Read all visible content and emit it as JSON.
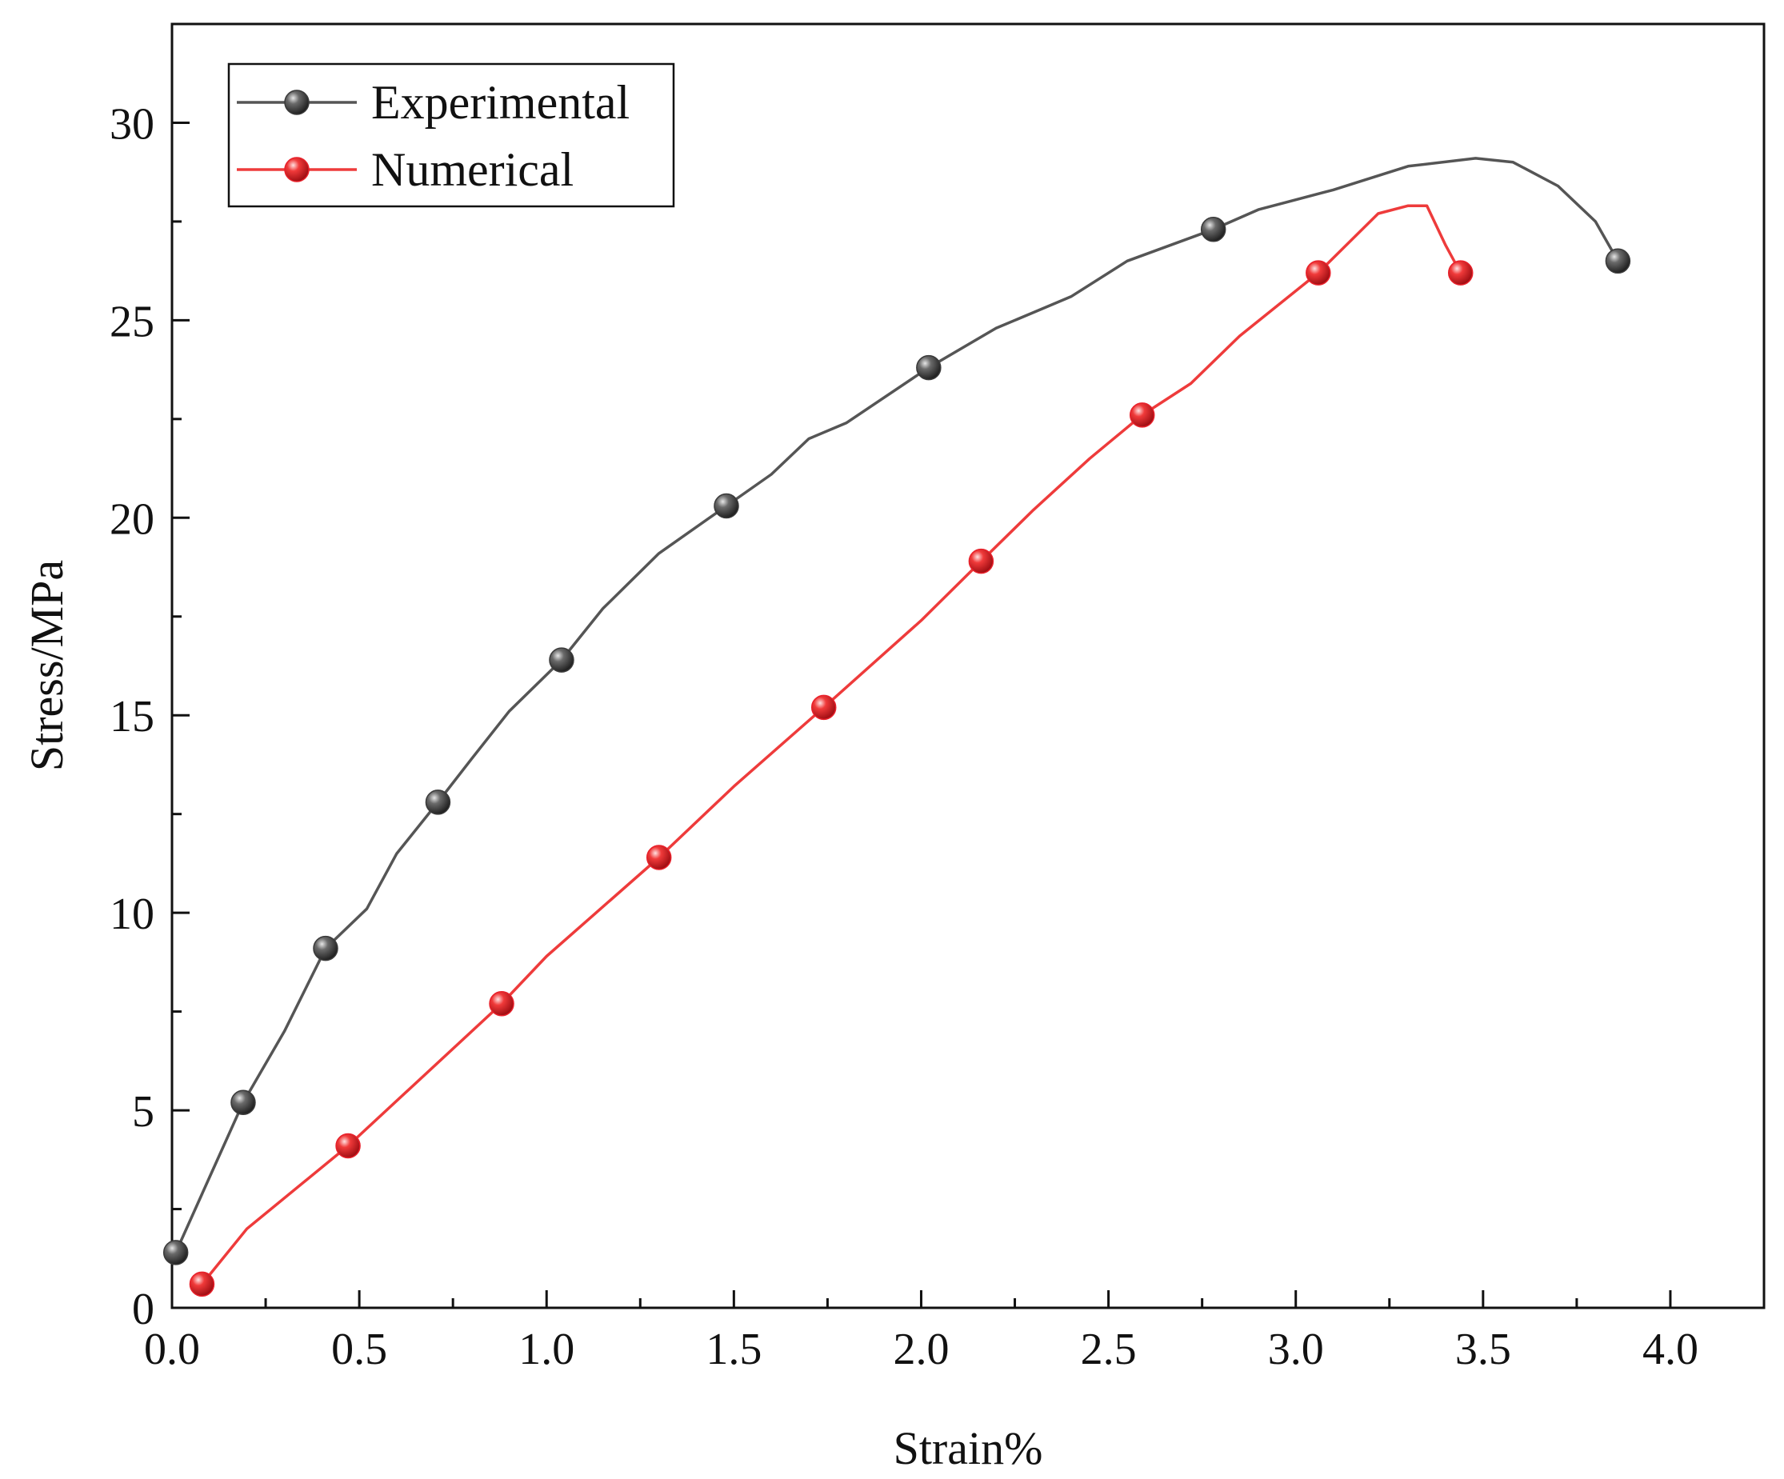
{
  "chart_data": {
    "type": "line",
    "title": "",
    "xlabel": "Strain%",
    "ylabel": "Stress/MPa",
    "xlim": [
      0,
      4.25
    ],
    "ylim": [
      0,
      32.5
    ],
    "xticks": [
      0.0,
      0.5,
      1.0,
      1.5,
      2.0,
      2.5,
      3.0,
      3.5,
      4.0
    ],
    "xtick_labels": [
      "0.0",
      "0.5",
      "1.0",
      "1.5",
      "2.0",
      "2.5",
      "3.0",
      "3.5",
      "4.0"
    ],
    "yticks": [
      0,
      5,
      10,
      15,
      20,
      25,
      30
    ],
    "ytick_labels": [
      "0",
      "5",
      "10",
      "15",
      "20",
      "25",
      "30"
    ],
    "grid": false,
    "legend_position": "top-left",
    "series": [
      {
        "name": "Experimental",
        "color": "#555555",
        "marker_color": "#3a3a3a",
        "line": [
          [
            0.01,
            1.4
          ],
          [
            0.1,
            3.3
          ],
          [
            0.19,
            5.2
          ],
          [
            0.3,
            7.0
          ],
          [
            0.41,
            9.1
          ],
          [
            0.52,
            10.1
          ],
          [
            0.6,
            11.5
          ],
          [
            0.71,
            12.8
          ],
          [
            0.8,
            13.9
          ],
          [
            0.9,
            15.1
          ],
          [
            1.04,
            16.4
          ],
          [
            1.15,
            17.7
          ],
          [
            1.3,
            19.1
          ],
          [
            1.48,
            20.3
          ],
          [
            1.6,
            21.1
          ],
          [
            1.7,
            22.0
          ],
          [
            1.8,
            22.4
          ],
          [
            2.02,
            23.8
          ],
          [
            2.2,
            24.8
          ],
          [
            2.4,
            25.6
          ],
          [
            2.55,
            26.5
          ],
          [
            2.78,
            27.3
          ],
          [
            2.9,
            27.8
          ],
          [
            3.1,
            28.3
          ],
          [
            3.3,
            28.9
          ],
          [
            3.48,
            29.1
          ],
          [
            3.58,
            29.0
          ],
          [
            3.7,
            28.4
          ],
          [
            3.8,
            27.5
          ],
          [
            3.86,
            26.5
          ]
        ],
        "markers": [
          [
            0.01,
            1.4
          ],
          [
            0.19,
            5.2
          ],
          [
            0.41,
            9.1
          ],
          [
            0.71,
            12.8
          ],
          [
            1.04,
            16.4
          ],
          [
            1.48,
            20.3
          ],
          [
            2.02,
            23.8
          ],
          [
            2.78,
            27.3
          ],
          [
            3.86,
            26.5
          ]
        ]
      },
      {
        "name": "Numerical",
        "color": "#ee3b3b",
        "marker_color": "#e8202a",
        "line": [
          [
            0.08,
            0.6
          ],
          [
            0.2,
            2.0
          ],
          [
            0.47,
            4.1
          ],
          [
            0.88,
            7.7
          ],
          [
            1.0,
            8.9
          ],
          [
            1.3,
            11.4
          ],
          [
            1.5,
            13.2
          ],
          [
            1.74,
            15.2
          ],
          [
            2.0,
            17.4
          ],
          [
            2.16,
            18.9
          ],
          [
            2.3,
            20.2
          ],
          [
            2.45,
            21.5
          ],
          [
            2.59,
            22.6
          ],
          [
            2.72,
            23.4
          ],
          [
            2.85,
            24.6
          ],
          [
            3.06,
            26.2
          ],
          [
            3.22,
            27.7
          ],
          [
            3.3,
            27.9
          ],
          [
            3.35,
            27.9
          ],
          [
            3.4,
            26.9
          ],
          [
            3.44,
            26.2
          ]
        ],
        "markers": [
          [
            0.08,
            0.6
          ],
          [
            0.47,
            4.1
          ],
          [
            0.88,
            7.7
          ],
          [
            1.3,
            11.4
          ],
          [
            1.74,
            15.2
          ],
          [
            2.16,
            18.9
          ],
          [
            2.59,
            22.6
          ],
          [
            3.06,
            26.2
          ],
          [
            3.44,
            26.2
          ]
        ]
      }
    ]
  }
}
